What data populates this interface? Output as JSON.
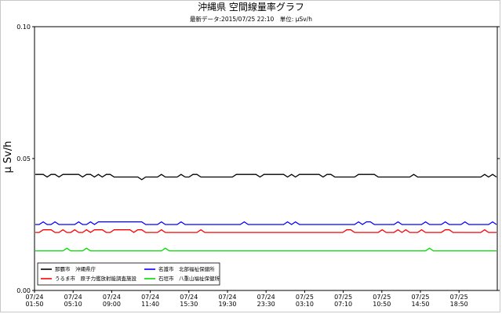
{
  "chart_data": {
    "type": "line",
    "title": "沖縄県 空間線量率グラフ",
    "subtitle": "最新データ:2015/07/25 22:10　単位: μSv/h",
    "ylabel": "μ Sv/h",
    "xlabel": "",
    "ylim": [
      0.0,
      0.1
    ],
    "yticks": [
      "0.00",
      "0.05",
      "0.10"
    ],
    "ytick_values": [
      0.0,
      0.05,
      0.1
    ],
    "grid": false,
    "legend_position": "bottom-left",
    "x_ticks": [
      {
        "date": "07/24",
        "time": "01:50"
      },
      {
        "date": "07/24",
        "time": "05:10"
      },
      {
        "date": "07/24",
        "time": "09:00"
      },
      {
        "date": "07/24",
        "time": "11:40"
      },
      {
        "date": "07/24",
        "time": "15:30"
      },
      {
        "date": "07/24",
        "time": "19:30"
      },
      {
        "date": "07/24",
        "time": "23:30"
      },
      {
        "date": "07/25",
        "time": "03:10"
      },
      {
        "date": "07/25",
        "time": "07:10"
      },
      {
        "date": "07/25",
        "time": "10:50"
      },
      {
        "date": "07/25",
        "time": "14:50"
      },
      {
        "date": "07/25",
        "time": "18:50"
      }
    ],
    "series": [
      {
        "name": "那覇市　沖縄県庁",
        "color": "#000000",
        "values": [
          0.044,
          0.044,
          0.044,
          0.043,
          0.044,
          0.044,
          0.043,
          0.044,
          0.044,
          0.044,
          0.044,
          0.044,
          0.043,
          0.044,
          0.044,
          0.043,
          0.044,
          0.043,
          0.044,
          0.044,
          0.043,
          0.043,
          0.043,
          0.043,
          0.043,
          0.043,
          0.043,
          0.042,
          0.043,
          0.043,
          0.043,
          0.043,
          0.044,
          0.043,
          0.043,
          0.043,
          0.043,
          0.044,
          0.043,
          0.043,
          0.044,
          0.044,
          0.043,
          0.043,
          0.043,
          0.043,
          0.043,
          0.043,
          0.043,
          0.043,
          0.043,
          0.044,
          0.044,
          0.044,
          0.044,
          0.044,
          0.044,
          0.043,
          0.044,
          0.044,
          0.044,
          0.044,
          0.044,
          0.044,
          0.043,
          0.044,
          0.043,
          0.044,
          0.044,
          0.044,
          0.044,
          0.044,
          0.044,
          0.043,
          0.044,
          0.044,
          0.043,
          0.043,
          0.043,
          0.043,
          0.043,
          0.043,
          0.044,
          0.044,
          0.044,
          0.044,
          0.044,
          0.043,
          0.043,
          0.043,
          0.043,
          0.043,
          0.043,
          0.043,
          0.043,
          0.043,
          0.044,
          0.043,
          0.043,
          0.043,
          0.043,
          0.043,
          0.043,
          0.043,
          0.043,
          0.043,
          0.043,
          0.043,
          0.043,
          0.043,
          0.043,
          0.043,
          0.043,
          0.043,
          0.044,
          0.043,
          0.044,
          0.043
        ]
      },
      {
        "name": "うるま市　原子力艦放射能調査施設",
        "color": "#ff0000",
        "values": [
          0.022,
          0.022,
          0.023,
          0.023,
          0.023,
          0.022,
          0.022,
          0.023,
          0.022,
          0.022,
          0.023,
          0.022,
          0.022,
          0.023,
          0.022,
          0.023,
          0.023,
          0.023,
          0.022,
          0.022,
          0.023,
          0.023,
          0.023,
          0.023,
          0.023,
          0.022,
          0.023,
          0.023,
          0.022,
          0.022,
          0.022,
          0.022,
          0.023,
          0.022,
          0.022,
          0.022,
          0.022,
          0.022,
          0.022,
          0.022,
          0.022,
          0.022,
          0.023,
          0.022,
          0.022,
          0.022,
          0.022,
          0.022,
          0.022,
          0.022,
          0.022,
          0.022,
          0.022,
          0.022,
          0.022,
          0.022,
          0.022,
          0.022,
          0.022,
          0.022,
          0.022,
          0.022,
          0.022,
          0.022,
          0.022,
          0.022,
          0.022,
          0.022,
          0.022,
          0.022,
          0.022,
          0.022,
          0.022,
          0.022,
          0.022,
          0.022,
          0.022,
          0.022,
          0.022,
          0.023,
          0.023,
          0.022,
          0.022,
          0.022,
          0.022,
          0.022,
          0.022,
          0.022,
          0.023,
          0.022,
          0.022,
          0.022,
          0.023,
          0.022,
          0.023,
          0.022,
          0.022,
          0.022,
          0.023,
          0.022,
          0.022,
          0.022,
          0.022,
          0.022,
          0.023,
          0.023,
          0.022,
          0.022,
          0.022,
          0.022,
          0.022,
          0.022,
          0.022,
          0.022,
          0.023,
          0.022,
          0.022,
          0.022
        ]
      },
      {
        "name": "名護市　北部福祉保健所",
        "color": "#0000ff",
        "values": [
          0.025,
          0.025,
          0.026,
          0.025,
          0.025,
          0.026,
          0.025,
          0.025,
          0.025,
          0.025,
          0.025,
          0.026,
          0.025,
          0.025,
          0.026,
          0.025,
          0.026,
          0.026,
          0.026,
          0.026,
          0.026,
          0.026,
          0.026,
          0.026,
          0.026,
          0.026,
          0.026,
          0.026,
          0.025,
          0.025,
          0.025,
          0.025,
          0.026,
          0.025,
          0.025,
          0.025,
          0.025,
          0.026,
          0.025,
          0.025,
          0.025,
          0.025,
          0.025,
          0.025,
          0.025,
          0.025,
          0.025,
          0.025,
          0.025,
          0.025,
          0.025,
          0.025,
          0.025,
          0.026,
          0.025,
          0.025,
          0.025,
          0.025,
          0.025,
          0.025,
          0.025,
          0.025,
          0.025,
          0.025,
          0.026,
          0.025,
          0.026,
          0.025,
          0.025,
          0.025,
          0.025,
          0.025,
          0.025,
          0.025,
          0.025,
          0.025,
          0.025,
          0.025,
          0.025,
          0.025,
          0.025,
          0.025,
          0.026,
          0.025,
          0.026,
          0.026,
          0.025,
          0.025,
          0.025,
          0.025,
          0.025,
          0.025,
          0.026,
          0.025,
          0.025,
          0.025,
          0.025,
          0.025,
          0.025,
          0.026,
          0.025,
          0.025,
          0.025,
          0.025,
          0.026,
          0.025,
          0.025,
          0.025,
          0.025,
          0.026,
          0.025,
          0.025,
          0.025,
          0.025,
          0.025,
          0.025,
          0.026,
          0.025
        ]
      },
      {
        "name": "石垣市　八重山福祉保健所",
        "color": "#00dd00",
        "values": [
          0.015,
          0.015,
          0.015,
          0.015,
          0.015,
          0.015,
          0.015,
          0.015,
          0.016,
          0.015,
          0.015,
          0.015,
          0.015,
          0.016,
          0.015,
          0.015,
          0.015,
          0.015,
          0.015,
          0.015,
          0.015,
          0.015,
          0.015,
          0.015,
          0.015,
          0.015,
          0.015,
          0.015,
          0.015,
          0.015,
          0.015,
          0.015,
          0.015,
          0.016,
          0.015,
          0.015,
          0.015,
          0.015,
          0.015,
          0.015,
          0.015,
          0.015,
          0.015,
          0.015,
          0.015,
          0.015,
          0.015,
          0.015,
          0.015,
          0.015,
          0.015,
          0.015,
          0.015,
          0.015,
          0.015,
          0.015,
          0.015,
          0.015,
          0.015,
          0.015,
          0.015,
          0.015,
          0.015,
          0.015,
          0.015,
          0.015,
          0.015,
          0.015,
          0.015,
          0.015,
          0.015,
          0.015,
          0.015,
          0.015,
          0.015,
          0.015,
          0.015,
          0.015,
          0.015,
          0.015,
          0.015,
          0.015,
          0.015,
          0.015,
          0.015,
          0.015,
          0.015,
          0.015,
          0.015,
          0.015,
          0.015,
          0.015,
          0.015,
          0.015,
          0.015,
          0.015,
          0.015,
          0.015,
          0.015,
          0.015,
          0.016,
          0.015,
          0.015,
          0.015,
          0.015,
          0.015,
          0.015,
          0.015,
          0.015,
          0.015,
          0.015,
          0.015,
          0.015,
          0.015,
          0.015,
          0.015,
          0.015,
          0.015
        ]
      }
    ]
  }
}
